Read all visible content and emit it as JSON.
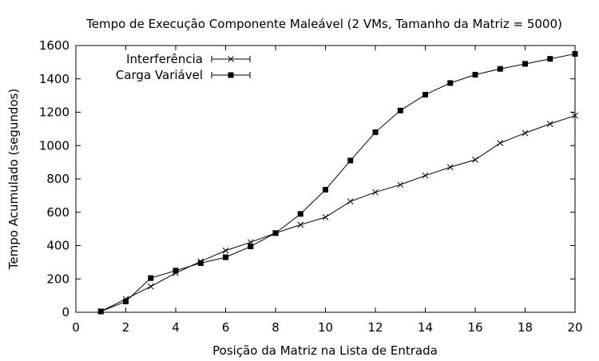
{
  "chart_data": {
    "type": "line",
    "title": "Tempo de Execução Componente Maleável (2 VMs, Tamanho da Matriz = 5000)",
    "xlabel": "Posição da Matriz na Lista de Entrada",
    "ylabel": "Tempo Acumulado (segundos)",
    "xlim": [
      0,
      20
    ],
    "ylim": [
      0,
      1600
    ],
    "xticks": [
      0,
      2,
      4,
      6,
      8,
      10,
      12,
      14,
      16,
      18,
      20
    ],
    "yticks": [
      0,
      200,
      400,
      600,
      800,
      1000,
      1200,
      1400,
      1600
    ],
    "grid": false,
    "legend_position": "top-left",
    "x": [
      1,
      2,
      3,
      4,
      5,
      6,
      7,
      8,
      9,
      10,
      11,
      12,
      13,
      14,
      15,
      16,
      17,
      18,
      19,
      20
    ],
    "series": [
      {
        "name": "Interferência",
        "marker": "cross",
        "color": "#000000",
        "values": [
          5,
          80,
          155,
          235,
          305,
          370,
          420,
          475,
          525,
          570,
          665,
          720,
          765,
          820,
          870,
          915,
          1015,
          1075,
          1130,
          1180
        ]
      },
      {
        "name": "Carga Variável",
        "marker": "square",
        "color": "#000000",
        "values": [
          5,
          65,
          205,
          250,
          295,
          330,
          395,
          475,
          590,
          735,
          910,
          1080,
          1210,
          1305,
          1375,
          1425,
          1460,
          1490,
          1520,
          1550
        ]
      }
    ]
  }
}
